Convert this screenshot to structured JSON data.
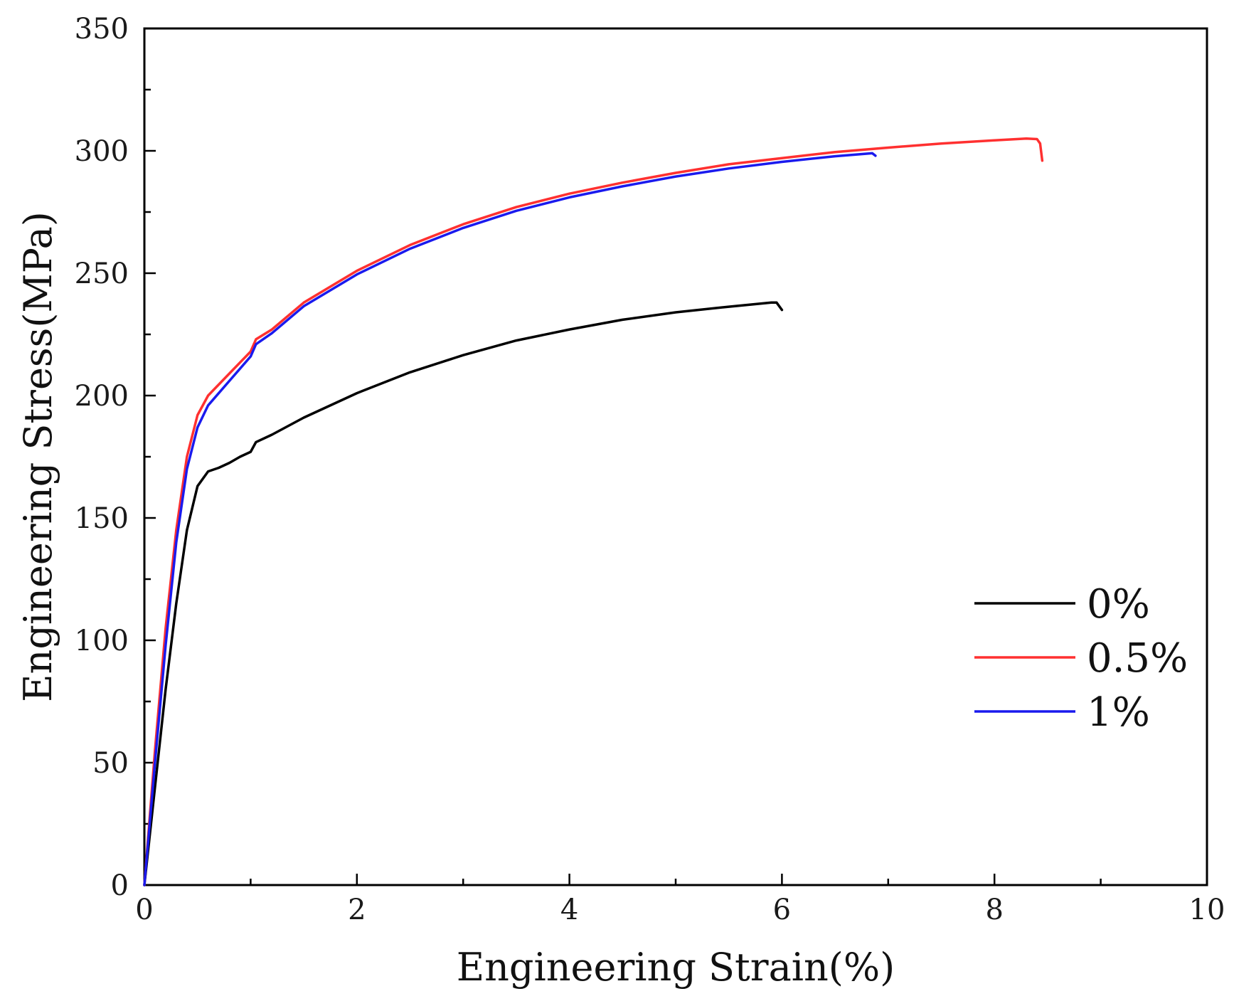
{
  "chart_data": {
    "type": "line",
    "title": "",
    "xlabel": "Engineering Strain(%)",
    "ylabel": "Engineering Stress(MPa)",
    "xlim": [
      0,
      10
    ],
    "ylim": [
      0,
      350
    ],
    "xticks": [
      "0",
      "2",
      "4",
      "6",
      "8",
      "10"
    ],
    "yticks": [
      "0",
      "50",
      "100",
      "150",
      "200",
      "250",
      "300",
      "350"
    ],
    "grid": false,
    "legend_position": "bottom-right",
    "series": [
      {
        "name": "0%",
        "color": "#000000",
        "points": [
          [
            0,
            0
          ],
          [
            0.1,
            40
          ],
          [
            0.2,
            80
          ],
          [
            0.3,
            115
          ],
          [
            0.4,
            145
          ],
          [
            0.5,
            163
          ],
          [
            0.6,
            169
          ],
          [
            0.7,
            170.5
          ],
          [
            0.8,
            172.5
          ],
          [
            0.9,
            175
          ],
          [
            1.0,
            177
          ],
          [
            1.05,
            181
          ],
          [
            1.2,
            184
          ],
          [
            1.5,
            191
          ],
          [
            2.0,
            201
          ],
          [
            2.5,
            209.5
          ],
          [
            3.0,
            216.5
          ],
          [
            3.5,
            222.5
          ],
          [
            4.0,
            227
          ],
          [
            4.5,
            231
          ],
          [
            5.0,
            234
          ],
          [
            5.5,
            236.3
          ],
          [
            5.9,
            238
          ],
          [
            5.95,
            238
          ],
          [
            6.0,
            235
          ]
        ]
      },
      {
        "name": "0.5%",
        "color": "#ff3030",
        "points": [
          [
            0,
            0
          ],
          [
            0.1,
            55
          ],
          [
            0.2,
            105
          ],
          [
            0.3,
            145
          ],
          [
            0.4,
            175
          ],
          [
            0.5,
            192
          ],
          [
            0.6,
            200
          ],
          [
            0.8,
            209
          ],
          [
            1.0,
            218
          ],
          [
            1.05,
            223
          ],
          [
            1.2,
            227
          ],
          [
            1.5,
            238
          ],
          [
            2.0,
            251
          ],
          [
            2.5,
            261.5
          ],
          [
            3.0,
            270
          ],
          [
            3.5,
            277
          ],
          [
            4.0,
            282.5
          ],
          [
            4.5,
            287
          ],
          [
            5.0,
            291
          ],
          [
            5.5,
            294.5
          ],
          [
            6.0,
            297
          ],
          [
            6.5,
            299.5
          ],
          [
            7.0,
            301.3
          ],
          [
            7.5,
            303
          ],
          [
            8.0,
            304.3
          ],
          [
            8.3,
            305
          ],
          [
            8.4,
            304.8
          ],
          [
            8.43,
            303
          ],
          [
            8.45,
            296
          ]
        ]
      },
      {
        "name": "1%",
        "color": "#1a1aee",
        "points": [
          [
            0,
            0
          ],
          [
            0.1,
            50
          ],
          [
            0.2,
            98
          ],
          [
            0.3,
            140
          ],
          [
            0.4,
            170
          ],
          [
            0.5,
            187
          ],
          [
            0.6,
            196
          ],
          [
            0.8,
            206
          ],
          [
            1.0,
            216
          ],
          [
            1.05,
            221
          ],
          [
            1.2,
            225.5
          ],
          [
            1.5,
            236.5
          ],
          [
            2.0,
            249.5
          ],
          [
            2.5,
            260
          ],
          [
            3.0,
            268.5
          ],
          [
            3.5,
            275.5
          ],
          [
            4.0,
            281
          ],
          [
            4.5,
            285.5
          ],
          [
            5.0,
            289.5
          ],
          [
            5.5,
            292.8
          ],
          [
            6.0,
            295.5
          ],
          [
            6.5,
            297.8
          ],
          [
            6.85,
            299
          ],
          [
            6.88,
            298
          ]
        ]
      }
    ]
  }
}
